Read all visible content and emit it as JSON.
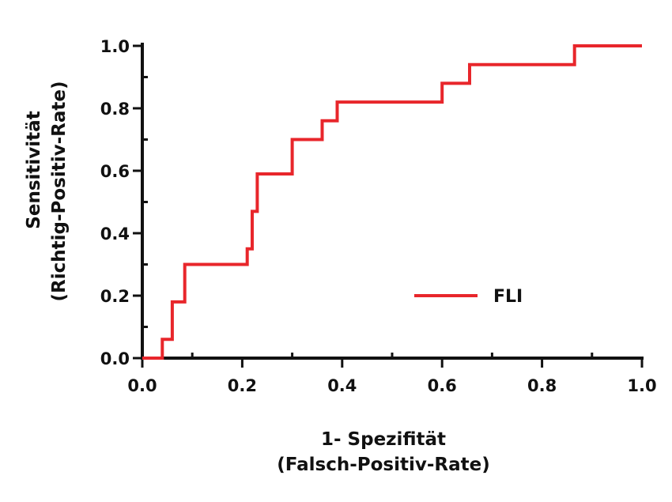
{
  "chart_data": {
    "type": "line",
    "xlabel_line1": "1- Spezifität",
    "xlabel_line2": "(Falsch-Positiv-Rate)",
    "ylabel_line1": "Sensitivität",
    "ylabel_line2": "(Richtig-Positiv-Rate)",
    "xlim": [
      0,
      1
    ],
    "ylim": [
      0,
      1
    ],
    "xticks": [
      0,
      0.2,
      0.4,
      0.6,
      0.8,
      1
    ],
    "yticks": [
      0,
      0.2,
      0.4,
      0.6,
      0.8,
      1
    ],
    "x_tick_labels": [
      "0.0",
      "0.2",
      "0.4",
      "0.6",
      "0.8",
      "1.0"
    ],
    "y_tick_labels": [
      "0.0",
      "0.2",
      "0.4",
      "0.6",
      "0.8",
      "1.0"
    ],
    "grid": false,
    "legend_position": "center-right",
    "series": [
      {
        "name": "FLI",
        "color": "#e8262b",
        "x": [
          0,
          0.04,
          0.04,
          0.06,
          0.06,
          0.085,
          0.085,
          0.21,
          0.21,
          0.22,
          0.22,
          0.23,
          0.23,
          0.3,
          0.3,
          0.36,
          0.36,
          0.39,
          0.39,
          0.6,
          0.6,
          0.655,
          0.655,
          0.865,
          0.865,
          1.0
        ],
        "y": [
          0,
          0,
          0.06,
          0.06,
          0.18,
          0.18,
          0.3,
          0.3,
          0.35,
          0.35,
          0.47,
          0.47,
          0.59,
          0.59,
          0.7,
          0.7,
          0.76,
          0.76,
          0.82,
          0.82,
          0.88,
          0.88,
          0.94,
          0.94,
          1.0,
          1.0
        ]
      }
    ]
  }
}
